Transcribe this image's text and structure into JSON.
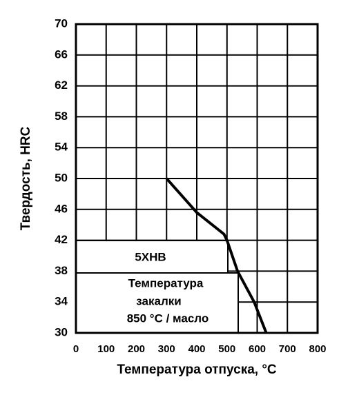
{
  "chart_data": {
    "type": "line",
    "y_label": "Твердость, HRC",
    "x_label": "Температура отпуска, °C",
    "annotations": [
      "5ХНВ",
      "Температура",
      "закалки",
      "850 °C / масло"
    ],
    "x": [
      300,
      400,
      490,
      500,
      535,
      590,
      630
    ],
    "series": [
      {
        "color": "#000000",
        "values": [
          50,
          45.6,
          42.8,
          42,
          38,
          34,
          30
        ]
      }
    ],
    "xlim": [
      0,
      800
    ],
    "xticks": [
      0,
      100,
      200,
      300,
      400,
      500,
      600,
      700,
      800
    ],
    "ylim": [
      30,
      70
    ],
    "yticks": [
      30,
      34,
      38,
      42,
      46,
      50,
      54,
      58,
      62,
      66,
      70
    ],
    "grid": true
  }
}
